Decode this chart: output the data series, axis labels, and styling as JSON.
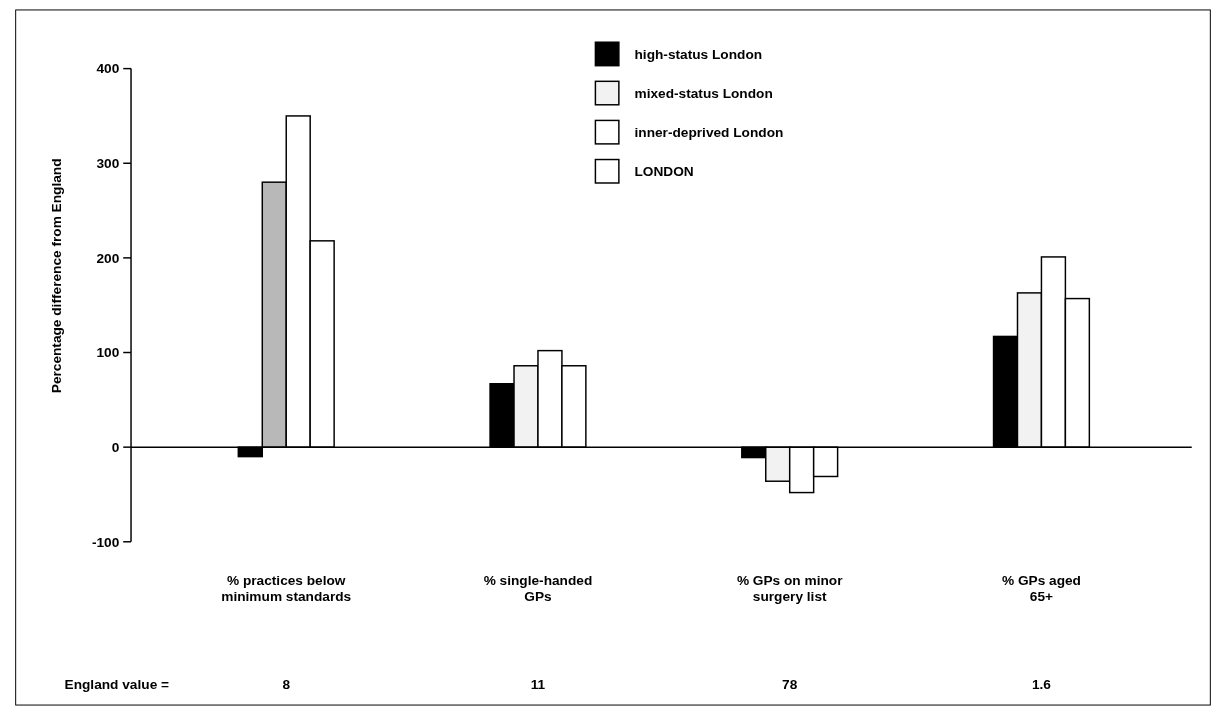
{
  "chart_data": {
    "type": "bar",
    "ylabel": "Percentage difference from England",
    "categories": [
      "% practices below\nminimum standards",
      "% single-handed\nGPs",
      "% GPs on minor\nsurgery list",
      "% GPs aged\n65+"
    ],
    "series": [
      {
        "name": "high-status London",
        "color": "#000000",
        "values": [
          -10,
          67,
          -11,
          117
        ]
      },
      {
        "name": "mixed-status London",
        "color": "#f2f2f2",
        "colors": [
          "#b8b8b8",
          "#f2f2f2",
          "#f2f2f2",
          "#f2f2f2"
        ],
        "values": [
          280,
          86,
          -36,
          163
        ]
      },
      {
        "name": "inner-deprived London",
        "color": "#ffffff",
        "values": [
          350,
          102,
          -48,
          201
        ]
      },
      {
        "name": "LONDON",
        "color": "#ffffff",
        "values": [
          218,
          86,
          -31,
          157
        ]
      }
    ],
    "ylim": [
      -100,
      400
    ],
    "yticks": [
      -100,
      0,
      100,
      200,
      300,
      400
    ],
    "legend": "top",
    "annotations": [
      "England value =",
      "8",
      "11",
      "78",
      "1.6"
    ]
  }
}
